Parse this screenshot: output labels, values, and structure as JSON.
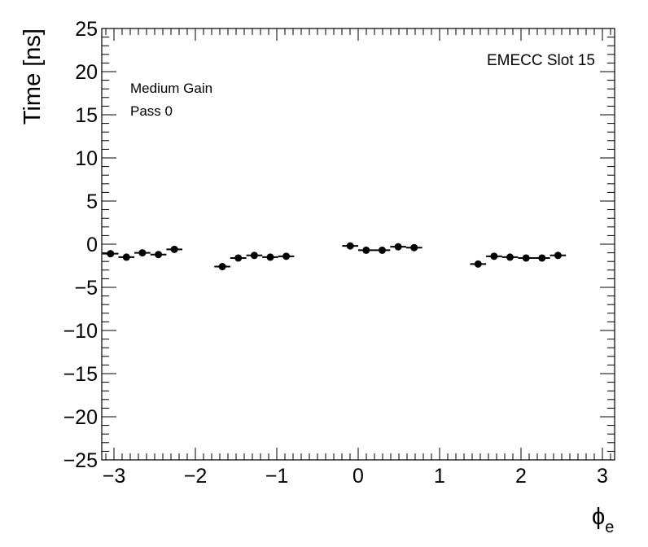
{
  "chart_data": {
    "type": "scatter",
    "title": "",
    "xlabel": "ϕ",
    "xlabel_subscript": "e",
    "ylabel": "Time [ns]",
    "xlim": [
      -3.15,
      3.15
    ],
    "ylim": [
      -25,
      25
    ],
    "x_ticks": [
      -3,
      -2,
      -1,
      0,
      1,
      2,
      3
    ],
    "x_tick_labels": [
      "−3",
      "−2",
      "−1",
      "0",
      "1",
      "2",
      "3"
    ],
    "y_ticks": [
      -25,
      -20,
      -15,
      -10,
      -5,
      0,
      5,
      10,
      15,
      20,
      25
    ],
    "y_tick_labels": [
      "−25",
      "−20",
      "−15",
      "−10",
      "−5",
      "0",
      "5",
      "10",
      "15",
      "20",
      "25"
    ],
    "grid": false,
    "annotations": {
      "gain": "Medium Gain",
      "pass": "Pass 0",
      "slot": "EMECC Slot 15"
    },
    "x_error": 0.0982,
    "series": [
      {
        "points": [
          {
            "x": -3.043,
            "y": -1.1
          },
          {
            "x": -2.847,
            "y": -1.5
          },
          {
            "x": -2.651,
            "y": -1.0
          },
          {
            "x": -2.454,
            "y": -1.2
          },
          {
            "x": -2.258,
            "y": -0.6
          },
          {
            "x": -1.669,
            "y": -2.6
          },
          {
            "x": -1.473,
            "y": -1.6
          },
          {
            "x": -1.276,
            "y": -1.3
          },
          {
            "x": -1.08,
            "y": -1.5
          },
          {
            "x": -0.884,
            "y": -1.4
          },
          {
            "x": -0.098,
            "y": -0.2
          },
          {
            "x": 0.098,
            "y": -0.7
          },
          {
            "x": 0.295,
            "y": -0.7
          },
          {
            "x": 0.491,
            "y": -0.3
          },
          {
            "x": 0.687,
            "y": -0.4
          },
          {
            "x": 1.473,
            "y": -2.3
          },
          {
            "x": 1.669,
            "y": -1.4
          },
          {
            "x": 1.865,
            "y": -1.5
          },
          {
            "x": 2.062,
            "y": -1.6
          },
          {
            "x": 2.258,
            "y": -1.6
          },
          {
            "x": 2.454,
            "y": -1.3
          }
        ]
      }
    ]
  }
}
